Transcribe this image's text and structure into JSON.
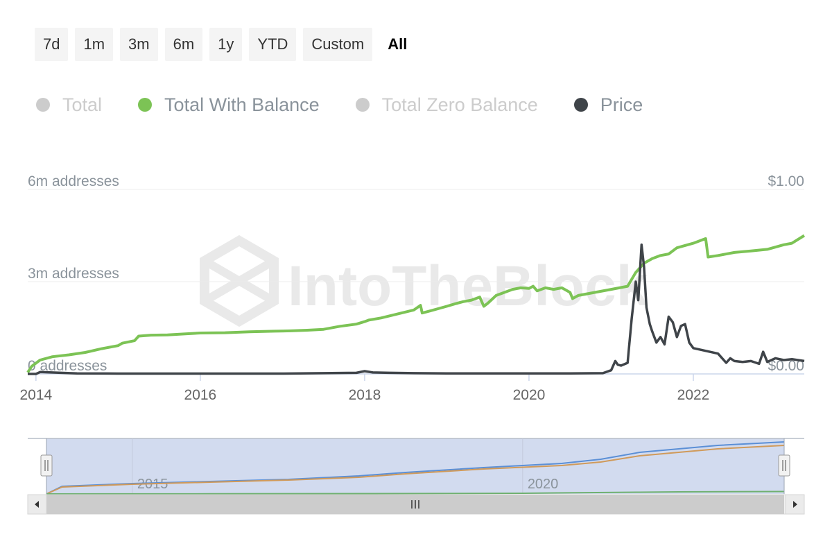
{
  "range_selector": {
    "buttons": [
      {
        "label": "7d",
        "active": false
      },
      {
        "label": "1m",
        "active": false
      },
      {
        "label": "3m",
        "active": false
      },
      {
        "label": "6m",
        "active": false
      },
      {
        "label": "1y",
        "active": false
      },
      {
        "label": "YTD",
        "active": false
      },
      {
        "label": "Custom",
        "active": false
      },
      {
        "label": "All",
        "active": true
      }
    ]
  },
  "legend": [
    {
      "label": "Total",
      "visible": false,
      "color": "#cccccc"
    },
    {
      "label": "Total With Balance",
      "visible": true,
      "color": "#7cc355"
    },
    {
      "label": "Total Zero Balance",
      "visible": false,
      "color": "#cccccc"
    },
    {
      "label": "Price",
      "visible": true,
      "color": "#3f4449"
    }
  ],
  "watermark": "IntoTheBlock",
  "chart_data": {
    "type": "line",
    "x_unit": "year",
    "x_range": [
      2013.9,
      2023.35
    ],
    "grid": true,
    "y_left": {
      "ticks": [
        "6m addresses",
        "3m addresses",
        "0 addresses"
      ],
      "tick_values": [
        6000000,
        3000000,
        0
      ],
      "range": [
        0,
        6000000
      ]
    },
    "y_right": {
      "ticks": [
        "$1.00",
        "$0.00"
      ],
      "tick_values": [
        1.0,
        0.0
      ],
      "range": [
        0,
        1.0
      ]
    },
    "x_ticks": [
      "2014",
      "2016",
      "2018",
      "2020",
      "2022"
    ],
    "x_tick_values": [
      2014,
      2016,
      2018,
      2020,
      2022
    ],
    "series": [
      {
        "name": "Total With Balance",
        "axis": "left",
        "color": "#7cc355",
        "x": [
          2013.9,
          2013.95,
          2014.05,
          2014.2,
          2014.4,
          2014.6,
          2014.8,
          2015.0,
          2015.05,
          2015.2,
          2015.25,
          2015.4,
          2015.6,
          2015.8,
          2016.0,
          2016.3,
          2016.6,
          2016.9,
          2017.1,
          2017.3,
          2017.5,
          2017.7,
          2017.9,
          2018.0,
          2018.05,
          2018.2,
          2018.4,
          2018.6,
          2018.68,
          2018.7,
          2018.8,
          2019.0,
          2019.1,
          2019.2,
          2019.3,
          2019.4,
          2019.45,
          2019.5,
          2019.6,
          2019.8,
          2019.9,
          2020.0,
          2020.05,
          2020.1,
          2020.2,
          2020.3,
          2020.4,
          2020.5,
          2020.53,
          2020.6,
          2020.8,
          2021.0,
          2021.1,
          2021.2,
          2021.3,
          2021.4,
          2021.5,
          2021.6,
          2021.7,
          2021.8,
          2022.0,
          2022.15,
          2022.18,
          2022.3,
          2022.5,
          2022.7,
          2022.9,
          2023.1,
          2023.2,
          2023.35
        ],
        "y": [
          50000,
          250000,
          450000,
          560000,
          620000,
          700000,
          820000,
          920000,
          1000000,
          1080000,
          1230000,
          1260000,
          1270000,
          1300000,
          1330000,
          1340000,
          1370000,
          1390000,
          1400000,
          1420000,
          1450000,
          1550000,
          1620000,
          1700000,
          1750000,
          1820000,
          1950000,
          2080000,
          2230000,
          1980000,
          2050000,
          2200000,
          2280000,
          2350000,
          2400000,
          2500000,
          2200000,
          2300000,
          2550000,
          2750000,
          2800000,
          2780000,
          2850000,
          2700000,
          2800000,
          2750000,
          2800000,
          2650000,
          2450000,
          2550000,
          2650000,
          2750000,
          2800000,
          2850000,
          3300000,
          3600000,
          3750000,
          3850000,
          3900000,
          4100000,
          4250000,
          4400000,
          3800000,
          3850000,
          3950000,
          4000000,
          4050000,
          4200000,
          4250000,
          4500000
        ]
      },
      {
        "name": "Price",
        "axis": "right",
        "color": "#3f4449",
        "x": [
          2013.9,
          2014.0,
          2014.05,
          2014.5,
          2015.0,
          2016.0,
          2017.0,
          2017.5,
          2017.9,
          2018.0,
          2018.1,
          2018.3,
          2018.6,
          2019.0,
          2019.5,
          2020.0,
          2020.5,
          2020.9,
          2021.0,
          2021.05,
          2021.08,
          2021.12,
          2021.2,
          2021.25,
          2021.3,
          2021.33,
          2021.37,
          2021.4,
          2021.43,
          2021.47,
          2021.5,
          2021.55,
          2021.6,
          2021.65,
          2021.7,
          2021.75,
          2021.8,
          2021.85,
          2021.9,
          2021.95,
          2022.0,
          2022.1,
          2022.2,
          2022.3,
          2022.4,
          2022.45,
          2022.5,
          2022.6,
          2022.7,
          2022.8,
          2022.85,
          2022.9,
          2023.0,
          2023.1,
          2023.2,
          2023.35
        ],
        "y": [
          0.0,
          0.0,
          0.01,
          0.003,
          0.002,
          0.002,
          0.002,
          0.004,
          0.006,
          0.015,
          0.008,
          0.006,
          0.004,
          0.003,
          0.003,
          0.003,
          0.003,
          0.004,
          0.02,
          0.07,
          0.05,
          0.045,
          0.06,
          0.3,
          0.5,
          0.4,
          0.7,
          0.58,
          0.36,
          0.27,
          0.23,
          0.17,
          0.2,
          0.16,
          0.31,
          0.28,
          0.2,
          0.26,
          0.27,
          0.17,
          0.14,
          0.13,
          0.12,
          0.11,
          0.06,
          0.085,
          0.07,
          0.065,
          0.07,
          0.055,
          0.12,
          0.065,
          0.085,
          0.075,
          0.08,
          0.07
        ]
      }
    ],
    "navigator": {
      "x_ticks": [
        "2015",
        "2020"
      ],
      "x_tick_values": [
        2015,
        2020
      ],
      "handle_glyph": "||",
      "scroll_glyph": "|||",
      "series": [
        {
          "color": "#5b8fd6",
          "x": [
            2013.9,
            2014.1,
            2015.0,
            2016.0,
            2017.0,
            2017.9,
            2018.5,
            2019.5,
            2020.5,
            2021.0,
            2021.5,
            2022.0,
            2022.5,
            2023.35
          ],
          "y": [
            0,
            0.22,
            0.3,
            0.36,
            0.42,
            0.52,
            0.62,
            0.76,
            0.88,
            1.0,
            1.2,
            1.3,
            1.4,
            1.5
          ]
        },
        {
          "color": "#d09a5a",
          "x": [
            2013.9,
            2014.1,
            2015.0,
            2016.0,
            2017.0,
            2017.9,
            2018.5,
            2019.5,
            2020.5,
            2021.0,
            2021.5,
            2022.0,
            2022.5,
            2023.35
          ],
          "y": [
            0,
            0.2,
            0.28,
            0.34,
            0.4,
            0.48,
            0.58,
            0.72,
            0.82,
            0.92,
            1.1,
            1.2,
            1.3,
            1.4
          ]
        },
        {
          "color": "#6fb06f",
          "x": [
            2013.9,
            2016.0,
            2018.0,
            2020.0,
            2021.5,
            2022.0,
            2023.35
          ],
          "y": [
            0,
            0.005,
            0.01,
            0.02,
            0.05,
            0.06,
            0.07
          ]
        }
      ]
    }
  }
}
